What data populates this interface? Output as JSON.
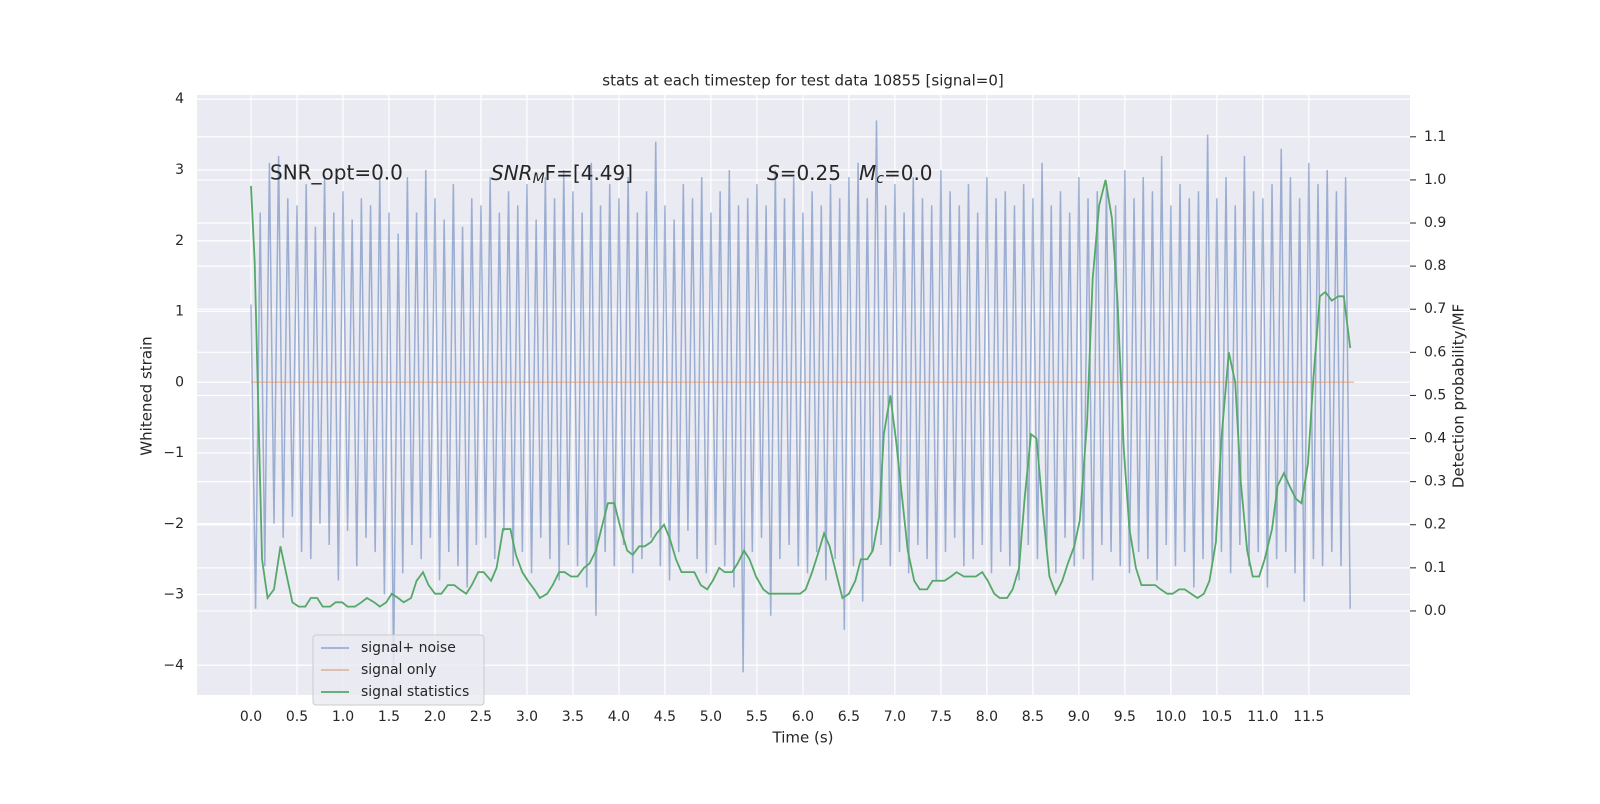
{
  "chart_data": {
    "type": "line",
    "title": "stats at each timestep for test data 10855 [signal=0]",
    "x_label": "Time (s)",
    "y_label": "Whitened strain",
    "y2_label": "Detection probability/MF",
    "annotations": [
      {
        "text": "SNR_opt=0.0"
      },
      {
        "symbol": "SNR",
        "sub": "M",
        "text": "F=[4.49]"
      },
      {
        "symbol": "S",
        "text": "=0.25"
      },
      {
        "symbol": "M",
        "sub": "c",
        "text": "=0.0"
      }
    ],
    "xlim": [
      -0.587,
      12.6
    ],
    "ylim": [
      -4.42,
      4.06
    ],
    "y2lim": [
      -0.195,
      1.197
    ],
    "xticks": [
      {
        "value": 0,
        "label": "0.0"
      },
      {
        "value": 0.5,
        "label": "0.5"
      },
      {
        "value": 1,
        "label": "1.0"
      },
      {
        "value": 1.5,
        "label": "1.5"
      },
      {
        "value": 2,
        "label": "2.0"
      },
      {
        "value": 2.5,
        "label": "2.5"
      },
      {
        "value": 3,
        "label": "3.0"
      },
      {
        "value": 3.5,
        "label": "3.5"
      },
      {
        "value": 4,
        "label": "4.0"
      },
      {
        "value": 4.5,
        "label": "4.5"
      },
      {
        "value": 5,
        "label": "5.0"
      },
      {
        "value": 5.5,
        "label": "5.5"
      },
      {
        "value": 6,
        "label": "6.0"
      },
      {
        "value": 6.5,
        "label": "6.5"
      },
      {
        "value": 7,
        "label": "7.0"
      },
      {
        "value": 7.5,
        "label": "7.5"
      },
      {
        "value": 8,
        "label": "8.0"
      },
      {
        "value": 8.5,
        "label": "8.5"
      },
      {
        "value": 9,
        "label": "9.0"
      },
      {
        "value": 9.5,
        "label": "9.5"
      },
      {
        "value": 10,
        "label": "10.0"
      },
      {
        "value": 10.5,
        "label": "10.5"
      },
      {
        "value": 11,
        "label": "11.0"
      },
      {
        "value": 11.5,
        "label": "11.5"
      }
    ],
    "yticks": [
      {
        "value": -4,
        "label": "−4"
      },
      {
        "value": -3,
        "label": "−3"
      },
      {
        "value": -2,
        "label": "−2"
      },
      {
        "value": -1,
        "label": "−1"
      },
      0,
      1,
      2,
      3,
      4
    ],
    "y2ticks": [
      {
        "value": 0,
        "label": "0.0"
      },
      {
        "value": 0.1,
        "label": "0.1"
      },
      {
        "value": 0.2,
        "label": "0.2"
      },
      {
        "value": 0.3,
        "label": "0.3"
      },
      {
        "value": 0.4,
        "label": "0.4"
      },
      {
        "value": 0.5,
        "label": "0.5"
      },
      {
        "value": 0.6,
        "label": "0.6"
      },
      {
        "value": 0.7,
        "label": "0.7"
      },
      {
        "value": 0.8,
        "label": "0.8"
      },
      {
        "value": 0.9,
        "label": "0.9"
      },
      {
        "value": 1,
        "label": "1.0"
      },
      {
        "value": 1.1,
        "label": "1.1"
      }
    ],
    "grid": true,
    "legend_position": "lower left",
    "series": [
      {
        "name": "signal+ noise",
        "color": "#4c72b0",
        "opacity": 0.5,
        "x": [
          0,
          0.05,
          0.1,
          0.15,
          0.2,
          0.25,
          0.3,
          0.35,
          0.4,
          0.45,
          0.5,
          0.55,
          0.6,
          0.65,
          0.7,
          0.75,
          0.8,
          0.85,
          0.9,
          0.95,
          1,
          1.05,
          1.1,
          1.15,
          1.2,
          1.25,
          1.3,
          1.35,
          1.4,
          1.45,
          1.5,
          1.55,
          1.6,
          1.65,
          1.7,
          1.75,
          1.8,
          1.85,
          1.9,
          1.95,
          2,
          2.05,
          2.1,
          2.15,
          2.2,
          2.25,
          2.3,
          2.35,
          2.4,
          2.45,
          2.5,
          2.55,
          2.6,
          2.65,
          2.7,
          2.75,
          2.8,
          2.85,
          2.9,
          2.95,
          3,
          3.05,
          3.1,
          3.15,
          3.2,
          3.25,
          3.3,
          3.35,
          3.4,
          3.45,
          3.5,
          3.55,
          3.6,
          3.65,
          3.7,
          3.75,
          3.8,
          3.85,
          3.9,
          3.95,
          4,
          4.05,
          4.1,
          4.15,
          4.2,
          4.25,
          4.3,
          4.35,
          4.4,
          4.45,
          4.5,
          4.55,
          4.6,
          4.65,
          4.7,
          4.75,
          4.8,
          4.85,
          4.9,
          4.95,
          5,
          5.05,
          5.1,
          5.15,
          5.2,
          5.25,
          5.3,
          5.35,
          5.4,
          5.45,
          5.5,
          5.55,
          5.6,
          5.65,
          5.7,
          5.75,
          5.8,
          5.85,
          5.9,
          5.95,
          6,
          6.05,
          6.1,
          6.15,
          6.2,
          6.25,
          6.3,
          6.35,
          6.4,
          6.45,
          6.5,
          6.55,
          6.6,
          6.65,
          6.7,
          6.75,
          6.8,
          6.85,
          6.9,
          6.95,
          7,
          7.05,
          7.1,
          7.15,
          7.2,
          7.25,
          7.3,
          7.35,
          7.4,
          7.45,
          7.5,
          7.55,
          7.6,
          7.65,
          7.7,
          7.75,
          7.8,
          7.85,
          7.9,
          7.95,
          8,
          8.05,
          8.1,
          8.15,
          8.2,
          8.25,
          8.3,
          8.35,
          8.4,
          8.45,
          8.5,
          8.55,
          8.6,
          8.65,
          8.7,
          8.75,
          8.8,
          8.85,
          8.9,
          8.95,
          9,
          9.05,
          9.1,
          9.15,
          9.2,
          9.25,
          9.3,
          9.35,
          9.4,
          9.45,
          9.5,
          9.55,
          9.6,
          9.65,
          9.7,
          9.75,
          9.8,
          9.85,
          9.9,
          9.95,
          10,
          10.05,
          10.1,
          10.15,
          10.2,
          10.25,
          10.3,
          10.35,
          10.4,
          10.45,
          10.5,
          10.55,
          10.6,
          10.65,
          10.7,
          10.75,
          10.8,
          10.85,
          10.9,
          10.95,
          11,
          11.05,
          11.1,
          11.15,
          11.2,
          11.25,
          11.3,
          11.35,
          11.4,
          11.45,
          11.5,
          11.55,
          11.6,
          11.65,
          11.7,
          11.75,
          11.8,
          11.85,
          11.9,
          11.95
        ],
        "values": [
          1.1,
          -3.2,
          2.4,
          -2.6,
          3.1,
          -2.0,
          3.2,
          -2.2,
          2.6,
          -1.9,
          2.5,
          -2.4,
          2.8,
          -2.5,
          2.2,
          -2.0,
          2.9,
          -2.3,
          2.4,
          -2.8,
          2.7,
          -2.1,
          2.3,
          -2.6,
          2.6,
          -2.2,
          2.5,
          -2.4,
          2.9,
          -3.0,
          2.4,
          -4.0,
          2.1,
          -2.7,
          2.9,
          -2.3,
          2.4,
          -2.5,
          3.0,
          -2.2,
          2.6,
          -2.8,
          2.3,
          -2.4,
          2.8,
          -2.6,
          2.2,
          -2.9,
          2.6,
          -2.3,
          2.5,
          -2.2,
          2.9,
          -2.5,
          2.4,
          -2.1,
          2.7,
          -2.6,
          2.5,
          -2.4,
          2.8,
          -2.7,
          2.3,
          -2.2,
          2.9,
          -2.5,
          2.6,
          -2.8,
          3.0,
          -2.3,
          2.7,
          -2.6,
          2.4,
          -2.9,
          3.1,
          -3.3,
          2.5,
          -2.4,
          2.8,
          -2.6,
          2.6,
          -2.3,
          2.9,
          -2.7,
          2.4,
          -2.5,
          2.7,
          -2.2,
          3.4,
          -2.6,
          2.5,
          -2.8,
          2.3,
          -2.4,
          2.8,
          -2.1,
          2.6,
          -2.5,
          2.9,
          -2.7,
          2.4,
          -2.3,
          2.7,
          -2.6,
          3.0,
          -2.9,
          2.5,
          -4.1,
          2.6,
          -2.4,
          2.8,
          -2.2,
          2.5,
          -3.3,
          3.0,
          -2.5,
          2.6,
          -2.3,
          2.9,
          -2.6,
          2.4,
          -2.7,
          2.7,
          -2.4,
          2.5,
          -2.8,
          2.8,
          -2.5,
          2.6,
          -3.5,
          2.9,
          -2.6,
          3.1,
          -3.1,
          2.6,
          -2.4,
          3.7,
          -2.3,
          2.5,
          -2.6,
          2.8,
          -2.4,
          2.4,
          -2.7,
          2.9,
          -2.3,
          2.6,
          -2.5,
          2.5,
          -2.8,
          3.0,
          -2.4,
          2.7,
          -2.2,
          2.5,
          -2.6,
          2.8,
          -2.5,
          2.4,
          -2.3,
          2.9,
          -2.7,
          2.6,
          -2.4,
          2.7,
          -2.6,
          2.5,
          -2.8,
          2.8,
          -2.3,
          2.6,
          -2.5,
          3.1,
          -2.4,
          2.5,
          -2.7,
          2.7,
          -2.2,
          2.4,
          -2.6,
          2.9,
          -2.5,
          2.6,
          -2.8,
          2.7,
          -2.3,
          2.8,
          -2.4,
          2.5,
          -2.6,
          3.0,
          -2.7,
          2.6,
          -2.4,
          2.9,
          -2.5,
          2.7,
          -2.8,
          3.2,
          -2.3,
          2.5,
          -2.6,
          2.8,
          -2.4,
          2.6,
          -2.9,
          2.7,
          -2.5,
          3.5,
          -2.6,
          2.6,
          -2.4,
          2.9,
          -2.7,
          2.5,
          -2.3,
          3.2,
          -2.6,
          2.7,
          -2.4,
          2.6,
          -2.9,
          2.8,
          -2.5,
          3.3,
          -2.4,
          2.9,
          -2.7,
          2.6,
          -3.1,
          3.1,
          -2.5,
          2.8,
          -2.6,
          3.0,
          -2.4,
          2.7,
          -2.6,
          2.9,
          -3.2
        ]
      },
      {
        "name": "signal only",
        "color": "#dd8452",
        "opacity": 0.5,
        "x": [
          0,
          11.99
        ],
        "values": [
          0,
          0
        ]
      },
      {
        "name": "signal statistics",
        "color": "#55a868",
        "opacity": 1,
        "axis": "y2",
        "x": [
          0,
          0.04,
          0.12,
          0.18,
          0.25,
          0.32,
          0.38,
          0.45,
          0.52,
          0.59,
          0.65,
          0.72,
          0.78,
          0.86,
          0.92,
          0.99,
          1.05,
          1.13,
          1.2,
          1.26,
          1.34,
          1.4,
          1.47,
          1.53,
          1.6,
          1.66,
          1.74,
          1.8,
          1.87,
          1.93,
          2.0,
          2.07,
          2.14,
          2.21,
          2.27,
          2.34,
          2.4,
          2.47,
          2.53,
          2.61,
          2.67,
          2.74,
          2.82,
          2.88,
          2.95,
          3.01,
          3.08,
          3.14,
          3.22,
          3.28,
          3.35,
          3.41,
          3.48,
          3.55,
          3.62,
          3.68,
          3.75,
          3.82,
          3.88,
          3.95,
          4.02,
          4.09,
          4.15,
          4.22,
          4.28,
          4.35,
          4.41,
          4.49,
          4.55,
          4.62,
          4.68,
          4.75,
          4.82,
          4.89,
          4.96,
          5.02,
          5.09,
          5.15,
          5.23,
          5.29,
          5.36,
          5.42,
          5.49,
          5.57,
          5.63,
          5.7,
          5.76,
          5.83,
          5.9,
          5.97,
          6.03,
          6.1,
          6.16,
          6.23,
          6.29,
          6.37,
          6.43,
          6.5,
          6.57,
          6.63,
          6.7,
          6.76,
          6.83,
          6.88,
          6.95,
          7.01,
          7.08,
          7.14,
          7.21,
          7.27,
          7.35,
          7.41,
          7.48,
          7.54,
          7.61,
          7.67,
          7.75,
          7.82,
          7.88,
          7.95,
          8.01,
          8.08,
          8.14,
          8.22,
          8.28,
          8.35,
          8.41,
          8.48,
          8.54,
          8.61,
          8.68,
          8.75,
          8.82,
          8.88,
          8.95,
          9.01,
          9.09,
          9.15,
          9.22,
          9.29,
          9.36,
          9.42,
          9.49,
          9.55,
          9.62,
          9.68,
          9.75,
          9.83,
          9.89,
          9.96,
          10.02,
          10.09,
          10.15,
          10.22,
          10.29,
          10.36,
          10.42,
          10.49,
          10.55,
          10.63,
          10.7,
          10.76,
          10.83,
          10.89,
          10.96,
          11.02,
          11.1,
          11.16,
          11.23,
          11.29,
          11.36,
          11.42,
          11.49,
          11.55,
          11.62,
          11.68,
          11.75,
          11.82,
          11.88,
          11.95
        ],
        "values": [
          0.986,
          0.81,
          0.12,
          0.03,
          0.05,
          0.15,
          0.09,
          0.02,
          0.01,
          0.01,
          0.03,
          0.03,
          0.01,
          0.01,
          0.02,
          0.02,
          0.01,
          0.01,
          0.02,
          0.03,
          0.02,
          0.01,
          0.02,
          0.04,
          0.03,
          0.02,
          0.03,
          0.07,
          0.09,
          0.06,
          0.04,
          0.04,
          0.06,
          0.06,
          0.05,
          0.04,
          0.06,
          0.09,
          0.09,
          0.07,
          0.1,
          0.19,
          0.19,
          0.13,
          0.09,
          0.07,
          0.05,
          0.03,
          0.04,
          0.06,
          0.09,
          0.09,
          0.08,
          0.08,
          0.1,
          0.11,
          0.14,
          0.2,
          0.25,
          0.25,
          0.19,
          0.14,
          0.13,
          0.15,
          0.15,
          0.16,
          0.18,
          0.2,
          0.17,
          0.12,
          0.09,
          0.09,
          0.09,
          0.06,
          0.05,
          0.07,
          0.1,
          0.09,
          0.09,
          0.11,
          0.14,
          0.12,
          0.08,
          0.05,
          0.04,
          0.04,
          0.04,
          0.04,
          0.04,
          0.04,
          0.05,
          0.09,
          0.13,
          0.18,
          0.15,
          0.08,
          0.03,
          0.04,
          0.07,
          0.12,
          0.12,
          0.14,
          0.22,
          0.41,
          0.5,
          0.4,
          0.26,
          0.14,
          0.07,
          0.05,
          0.05,
          0.07,
          0.07,
          0.07,
          0.08,
          0.09,
          0.08,
          0.08,
          0.08,
          0.09,
          0.07,
          0.04,
          0.03,
          0.03,
          0.05,
          0.1,
          0.26,
          0.41,
          0.4,
          0.23,
          0.08,
          0.04,
          0.07,
          0.11,
          0.15,
          0.21,
          0.44,
          0.77,
          0.94,
          1.0,
          0.91,
          0.72,
          0.37,
          0.19,
          0.1,
          0.06,
          0.06,
          0.06,
          0.05,
          0.04,
          0.04,
          0.05,
          0.05,
          0.04,
          0.03,
          0.04,
          0.07,
          0.16,
          0.4,
          0.6,
          0.53,
          0.3,
          0.14,
          0.08,
          0.08,
          0.12,
          0.19,
          0.29,
          0.32,
          0.29,
          0.26,
          0.25,
          0.34,
          0.54,
          0.73,
          0.74,
          0.72,
          0.73,
          0.73,
          0.61
        ]
      }
    ]
  }
}
